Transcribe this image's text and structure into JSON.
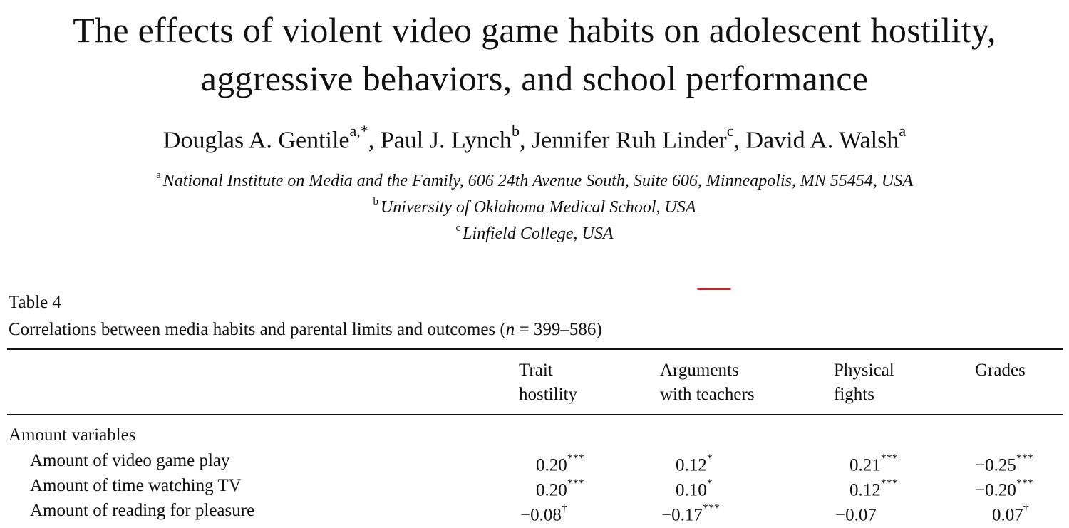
{
  "paper": {
    "title_line1": "The effects of violent video game habits on adolescent hostility,",
    "title_line2": "aggressive behaviors, and school performance",
    "authors": [
      {
        "name": "Douglas A. Gentile",
        "sup": "a,*",
        "sep": ", "
      },
      {
        "name": "Paul J. Lynch",
        "sup": "b",
        "sep": ", "
      },
      {
        "name": "Jennifer Ruh Linder",
        "sup": "c",
        "sep": ", "
      },
      {
        "name": "David A. Walsh",
        "sup": "a",
        "sep": ""
      }
    ],
    "affiliations": [
      {
        "sup": "a",
        "text": "National Institute on Media and the Family, 606 24th Avenue South, Suite 606, Minneapolis, MN 55454, USA"
      },
      {
        "sup": "b",
        "text": "University of Oklahoma Medical School, USA"
      },
      {
        "sup": "c",
        "text": "Linfield College, USA"
      }
    ]
  },
  "table": {
    "label": "Table 4",
    "caption_before": "Correlations between media habits and parental limits and outcomes (",
    "caption_var": "n",
    "caption_after": " = 399–586)",
    "columns": [
      {
        "line1": "Trait",
        "line2": "hostility"
      },
      {
        "line1": "Arguments",
        "line2": "with teachers"
      },
      {
        "line1": "Physical",
        "line2": "fights"
      },
      {
        "line1": "Grades",
        "line2": ""
      }
    ],
    "section": "Amount variables",
    "rows": [
      {
        "label": "Amount of video game play",
        "cells": [
          {
            "v": "0.20",
            "s": "***"
          },
          {
            "v": "0.12",
            "s": "*"
          },
          {
            "v": "0.21",
            "s": "***"
          },
          {
            "v": "−0.25",
            "s": "***"
          }
        ]
      },
      {
        "label": "Amount of time watching TV",
        "cells": [
          {
            "v": "0.20",
            "s": "***"
          },
          {
            "v": "0.10",
            "s": "*"
          },
          {
            "v": "0.12",
            "s": "***"
          },
          {
            "v": "−0.20",
            "s": "***"
          }
        ]
      },
      {
        "label": "Amount of reading for pleasure",
        "cells": [
          {
            "v": "−0.08",
            "s": "†"
          },
          {
            "v": "−0.17",
            "s": "***"
          },
          {
            "v": "−0.07",
            "s": ""
          },
          {
            "v": "0.07",
            "s": "†"
          }
        ]
      }
    ]
  },
  "colors": {
    "accent_mark": "#c8282f",
    "text": "#111111"
  }
}
